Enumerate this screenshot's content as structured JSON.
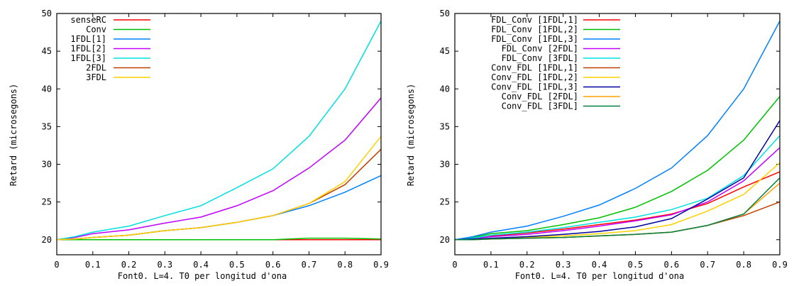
{
  "chart_data": [
    {
      "type": "line",
      "xlabel": "Font0. L=4. T0 per longitud d'ona",
      "ylabel": "Retard (microsegons)",
      "xlim": [
        0,
        0.9
      ],
      "ylim": [
        18,
        50
      ],
      "x_ticks": [
        "0",
        "0.1",
        "0.2",
        "0.3",
        "0.4",
        "0.5",
        "0.6",
        "0.7",
        "0.8",
        "0.9"
      ],
      "y_ticks": [
        "20",
        "25",
        "30",
        "35",
        "40",
        "45",
        "50"
      ],
      "legend_position": "top-left",
      "x": [
        0,
        0.05,
        0.1,
        0.2,
        0.3,
        0.4,
        0.5,
        0.6,
        0.7,
        0.8,
        0.9
      ],
      "series": [
        {
          "name": "senseRC",
          "color": "#ff0000",
          "values": [
            20,
            20,
            20,
            20,
            20,
            20,
            20,
            20,
            20,
            20,
            20
          ]
        },
        {
          "name": "Conv",
          "color": "#00c000",
          "values": [
            20,
            20,
            20,
            20,
            20,
            20,
            20,
            20,
            20.2,
            20.2,
            20.1
          ]
        },
        {
          "name": "1FDL[1]",
          "color": "#0080ff",
          "values": [
            20,
            20.1,
            20.3,
            20.6,
            21.2,
            21.6,
            22.3,
            23.2,
            24.5,
            26.3,
            28.5
          ]
        },
        {
          "name": "1FDL[2]",
          "color": "#c000ff",
          "values": [
            20,
            20.3,
            20.8,
            21.3,
            22.2,
            23.0,
            24.5,
            26.5,
            29.5,
            33.2,
            38.8
          ]
        },
        {
          "name": "1FDL[3]",
          "color": "#00e0e0",
          "values": [
            20,
            20.4,
            21.0,
            21.8,
            23.2,
            24.5,
            26.9,
            29.4,
            33.7,
            40.0,
            49.0
          ]
        },
        {
          "name": "2FDL",
          "color": "#c04000",
          "values": [
            20,
            20.1,
            20.3,
            20.6,
            21.2,
            21.6,
            22.3,
            23.2,
            24.8,
            27.3,
            32.0
          ]
        },
        {
          "name": "3FDL",
          "color": "#ffd000",
          "values": [
            20,
            20.1,
            20.3,
            20.6,
            21.2,
            21.6,
            22.3,
            23.2,
            24.8,
            27.7,
            33.7
          ]
        }
      ]
    },
    {
      "type": "line",
      "xlabel": "Font0. L=4. T0 per longitud d'ona",
      "ylabel": "Retard (microsegons)",
      "xlim": [
        0,
        0.9
      ],
      "ylim": [
        18,
        50
      ],
      "x_ticks": [
        "0",
        "0.1",
        "0.2",
        "0.3",
        "0.4",
        "0.5",
        "0.6",
        "0.7",
        "0.8",
        "0.9"
      ],
      "y_ticks": [
        "20",
        "25",
        "30",
        "35",
        "40",
        "45",
        "50"
      ],
      "legend_position": "top-left",
      "x": [
        0,
        0.05,
        0.1,
        0.2,
        0.3,
        0.4,
        0.5,
        0.6,
        0.7,
        0.8,
        0.9
      ],
      "series": [
        {
          "name": "FDL_Conv [1FDL,1]",
          "color": "#ff0000",
          "values": [
            20,
            20.2,
            20.5,
            20.9,
            21.4,
            22.0,
            22.6,
            23.4,
            24.8,
            27.0,
            29.0
          ]
        },
        {
          "name": "FDL_Conv [1FDL,2]",
          "color": "#00c000",
          "values": [
            20,
            20.3,
            20.8,
            21.2,
            22.0,
            22.9,
            24.3,
            26.4,
            29.2,
            33.2,
            39.0
          ]
        },
        {
          "name": "FDL_Conv [1FDL,3]",
          "color": "#0080ff",
          "values": [
            20,
            20.4,
            21.0,
            21.8,
            23.1,
            24.6,
            26.8,
            29.5,
            33.8,
            40.0,
            49.0
          ]
        },
        {
          "name": "FDL_Conv [2FDL]",
          "color": "#c000ff",
          "values": [
            20,
            20.2,
            20.4,
            20.7,
            21.2,
            21.8,
            22.5,
            23.3,
            25.0,
            27.8,
            32.2
          ]
        },
        {
          "name": "FDL_Conv [3FDL]",
          "color": "#00e0e0",
          "values": [
            20,
            20.2,
            20.6,
            21.0,
            21.6,
            22.3,
            23.0,
            24.0,
            25.5,
            28.5,
            33.8
          ]
        },
        {
          "name": "Conv_FDL [1FDL,1]",
          "color": "#c04000",
          "values": [
            20,
            20,
            20.1,
            20.2,
            20.3,
            20.5,
            20.7,
            21.0,
            21.9,
            23.2,
            25.0
          ]
        },
        {
          "name": "Conv_FDL [1FDL,2]",
          "color": "#ffd000",
          "values": [
            20,
            20,
            20.1,
            20.3,
            20.5,
            20.8,
            21.2,
            22.0,
            23.8,
            26.0,
            30.2
          ]
        },
        {
          "name": "Conv_FDL [1FDL,3]",
          "color": "#0000a0",
          "values": [
            20,
            20.1,
            20.2,
            20.4,
            20.7,
            21.1,
            21.7,
            22.8,
            25.4,
            28.2,
            35.8
          ]
        },
        {
          "name": "Conv_FDL [2FDL]",
          "color": "#ffa000",
          "values": [
            20,
            20,
            20.1,
            20.2,
            20.3,
            20.5,
            20.7,
            21.0,
            21.9,
            23.4,
            27.5
          ]
        },
        {
          "name": "Conv_FDL [3FDL]",
          "color": "#008040",
          "values": [
            20,
            20,
            20.1,
            20.2,
            20.3,
            20.5,
            20.7,
            21.0,
            21.9,
            23.4,
            28.2
          ]
        }
      ]
    }
  ]
}
